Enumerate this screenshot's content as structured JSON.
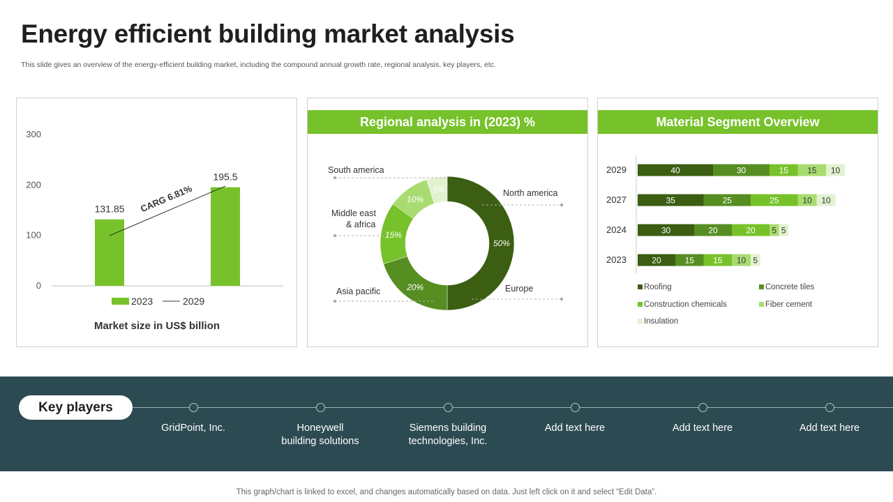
{
  "page": {
    "title": "Energy efficient building market analysis",
    "subtitle": "This slide gives an overview of the energy-efficient building market, including the compound annual growth rate, regional analysis, key players, etc.",
    "footer": "This graph/chart is linked to excel, and changes automatically based on data. Just left click on it and select “Edit Data”."
  },
  "colors": {
    "accent": "#77c22a",
    "band": "#2c4a52",
    "dark_green": "#3b5e12",
    "mid_green": "#568e22",
    "green": "#77c22a",
    "light_green": "#a8dc70",
    "pale_green": "#e1f2cf"
  },
  "chart_data": [
    {
      "type": "bar",
      "categories": [
        "2023",
        "2029"
      ],
      "values": [
        131.85,
        195.5
      ],
      "value_labels": [
        "131.85",
        "195.5"
      ],
      "ylim": [
        0,
        300
      ],
      "yticks": [
        "0",
        "100",
        "200",
        "300"
      ],
      "legend": [
        {
          "label": "2023",
          "kind": "bar"
        },
        {
          "label": "2029",
          "kind": "line"
        }
      ],
      "annotation": "CARG 6.81%",
      "caption": "Market size in US$ billion",
      "grid": false,
      "legend_position": "bottom"
    },
    {
      "type": "pie",
      "title": "Regional analysis in (2023) %",
      "donut": true,
      "slices": [
        {
          "label": "North america",
          "value": 50,
          "value_label": "50%",
          "color": "#3b5e12"
        },
        {
          "label": "Europe",
          "value": 0,
          "value_label": "",
          "color": "#3b5e12"
        },
        {
          "label": "Asia pacific",
          "value": 20,
          "value_label": "20%",
          "color": "#568e22"
        },
        {
          "label": "Middle east & africa",
          "value": 15,
          "value_label": "15%",
          "color": "#77c22a"
        },
        {
          "label": "South america",
          "value": 10,
          "value_label": "10%",
          "color": "#a8dc70"
        },
        {
          "label": "",
          "value": 5,
          "value_label": "5%",
          "color": "#e1f2cf"
        }
      ],
      "callouts": [
        {
          "text": "South america"
        },
        {
          "text": "North america"
        },
        {
          "text": "Middle east"
        },
        {
          "text": "& africa"
        },
        {
          "text": "Asia pacific"
        },
        {
          "text": "Europe"
        }
      ]
    },
    {
      "type": "bar",
      "orientation": "horizontal",
      "stacked": true,
      "title": "Material Segment Overview",
      "categories": [
        "2029",
        "2027",
        "2024",
        "2023"
      ],
      "series": [
        {
          "name": "Roofing",
          "values": [
            40,
            35,
            30,
            20
          ],
          "color": "#3b5e12"
        },
        {
          "name": "Concrete tiles",
          "values": [
            30,
            25,
            20,
            15
          ],
          "color": "#568e22"
        },
        {
          "name": "Construction chemicals",
          "values": [
            15,
            25,
            20,
            15
          ],
          "color": "#77c22a"
        },
        {
          "name": "Fiber cement",
          "values": [
            15,
            10,
            5,
            10
          ],
          "color": "#a8dc70"
        },
        {
          "name": "Insulation",
          "values": [
            10,
            10,
            5,
            5
          ],
          "color": "#e1f2cf"
        }
      ],
      "legend_position": "bottom"
    }
  ],
  "key_players": {
    "label": "Key players",
    "items": [
      {
        "lines": [
          "GridPoint, Inc."
        ]
      },
      {
        "lines": [
          "Honeywell",
          "building solutions"
        ]
      },
      {
        "lines": [
          "Siemens building",
          "technologies, Inc."
        ]
      },
      {
        "lines": [
          "Add text here"
        ]
      },
      {
        "lines": [
          "Add text here"
        ]
      },
      {
        "lines": [
          "Add text here"
        ]
      }
    ]
  }
}
